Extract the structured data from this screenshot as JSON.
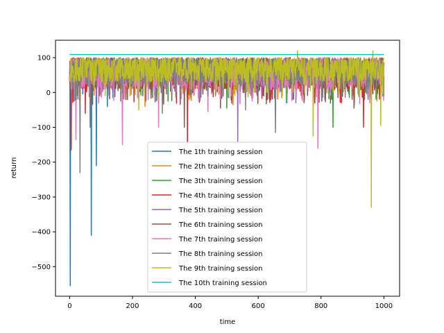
{
  "chart_data": {
    "type": "line",
    "title": "",
    "xlabel": "time",
    "ylabel": "return",
    "xlim": [
      -45,
      1050
    ],
    "ylim": [
      -585,
      150
    ],
    "xticks": [
      0,
      200,
      400,
      600,
      800,
      1000
    ],
    "yticks": [
      100,
      0,
      -100,
      -200,
      -300,
      -400,
      -500
    ],
    "grid": false,
    "legend_position": "lower-center",
    "series": [
      {
        "name": "The 1th training session",
        "color": "#1f77b4",
        "n": 1000,
        "base": 70,
        "amp": 45,
        "seed": 11,
        "spikes": [
          [
            2,
            -555
          ],
          [
            69,
            -410
          ],
          [
            85,
            -210
          ],
          [
            12,
            -25
          ],
          [
            120,
            -40
          ]
        ],
        "xmax": 175
      },
      {
        "name": "The 2th training session",
        "color": "#ff7f0e",
        "n": 1000,
        "base": 60,
        "amp": 40,
        "seed": 23,
        "spikes": [
          [
            240,
            -40
          ],
          [
            520,
            -35
          ]
        ],
        "xmax": 1000
      },
      {
        "name": "The 3th training session",
        "color": "#2ca02c",
        "n": 1000,
        "base": 60,
        "amp": 40,
        "seed": 37,
        "spikes": [
          [
            500,
            -45
          ],
          [
            838,
            -100
          ],
          [
            690,
            -30
          ]
        ],
        "xmax": 1000
      },
      {
        "name": "The 4th training session",
        "color": "#d62728",
        "n": 1000,
        "base": 55,
        "amp": 45,
        "seed": 41,
        "spikes": [
          [
            5,
            -165
          ],
          [
            375,
            -145
          ],
          [
            935,
            -100
          ],
          [
            50,
            -60
          ]
        ],
        "xmax": 1000
      },
      {
        "name": "The 5th training session",
        "color": "#9467bd",
        "n": 1000,
        "base": 60,
        "amp": 40,
        "seed": 53,
        "spikes": [
          [
            535,
            -140
          ],
          [
            720,
            -30
          ]
        ],
        "xmax": 1000
      },
      {
        "name": "The 6th training session",
        "color": "#8c564b",
        "n": 1000,
        "base": 55,
        "amp": 45,
        "seed": 67,
        "spikes": [
          [
            365,
            -100
          ],
          [
            480,
            -45
          ],
          [
            905,
            -45
          ]
        ],
        "xmax": 1000
      },
      {
        "name": "The 7th training session",
        "color": "#e377c2",
        "n": 1000,
        "base": 55,
        "amp": 45,
        "seed": 71,
        "spikes": [
          [
            20,
            -135
          ],
          [
            168,
            -150
          ],
          [
            283,
            -100
          ],
          [
            790,
            -160
          ],
          [
            440,
            -55
          ]
        ],
        "xmax": 1000
      },
      {
        "name": "The 8th training session",
        "color": "#7f7f7f",
        "n": 1000,
        "base": 65,
        "amp": 45,
        "seed": 83,
        "spikes": [
          [
            33,
            -230
          ],
          [
            65,
            -100
          ],
          [
            295,
            -60
          ],
          [
            655,
            -115
          ],
          [
            560,
            -50
          ]
        ],
        "xmax": 1000
      },
      {
        "name": "The 9th training session",
        "color": "#bcbd22",
        "n": 1000,
        "base": 70,
        "amp": 40,
        "seed": 97,
        "spikes": [
          [
            960,
            -330
          ],
          [
            775,
            -125
          ],
          [
            990,
            -95
          ],
          [
            220,
            -50
          ],
          [
            725,
            120
          ],
          [
            965,
            120
          ]
        ],
        "xmax": 1000
      },
      {
        "name": "The 10th training session",
        "color": "#17becf",
        "n": 1000,
        "base": 109,
        "amp": 0,
        "seed": 101,
        "spikes": [],
        "xmax": 1000
      }
    ]
  }
}
